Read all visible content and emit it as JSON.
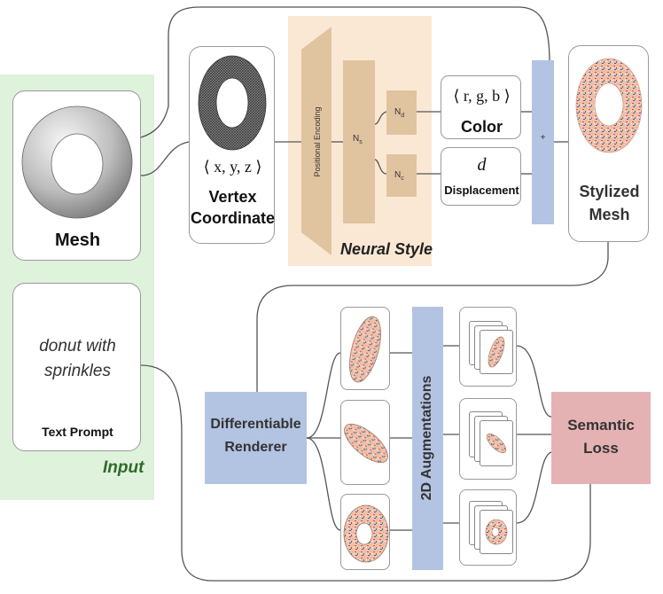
{
  "input": {
    "section_label": "Input",
    "mesh_label": "Mesh",
    "prompt_text_line1": "donut with",
    "prompt_text_line2": "sprinkles",
    "prompt_label": "Text Prompt"
  },
  "vertex": {
    "math": "⟨ x, y, z ⟩",
    "label_line1": "Vertex",
    "label_line2": "Coordinate"
  },
  "neural_style": {
    "title": "Neural Style",
    "encoding_label": "Positional Encoding",
    "ns_main": "N",
    "ns_sub": "s",
    "nd_main": "N",
    "nd_sub": "d",
    "nc_main": "N",
    "nc_sub": "c"
  },
  "outputs": {
    "color_math": "⟨ r, g, b ⟩",
    "color_label": "Color",
    "disp_math": "d",
    "disp_label": "Displacement"
  },
  "combine": {
    "symbol": "+"
  },
  "stylized": {
    "label_line1": "Stylized",
    "label_line2": "Mesh"
  },
  "renderer": {
    "label_line1": "Differentiable",
    "label_line2": "Renderer"
  },
  "augment": {
    "label": "2D Augmentations"
  },
  "loss": {
    "label_line1": "Semantic",
    "label_line2": "Loss"
  },
  "colors": {
    "input_bg": "#dff2dc",
    "input_label": "#2e6b2a",
    "neural_bg": "#fbe8d4",
    "block_fill": "#e0c4a0",
    "blue_fill": "#b3c3e2",
    "loss_fill": "#e5b2b3"
  }
}
